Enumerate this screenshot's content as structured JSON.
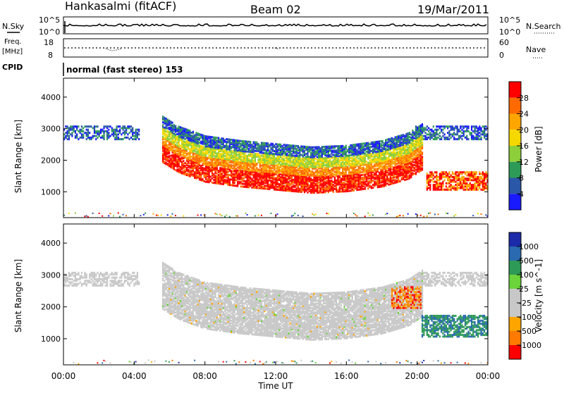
{
  "header": {
    "station": "Hankasalmi (fitACF)",
    "beam": "Beam 02",
    "date": "19/Mar/2011"
  },
  "top_panels": {
    "nsky_label": "N.Sky",
    "nsky_ticks": [
      "10^5",
      "10^0"
    ],
    "nsearch_label": "N.Search",
    "nsearch_ticks": [
      "10^5",
      "10^0"
    ],
    "freq_label_1": "Freq.",
    "freq_label_2": "[MHz]",
    "freq_ticks": [
      "18",
      "8"
    ],
    "nave_label": "Nave",
    "nave_ticks": [
      "60",
      "0"
    ],
    "cpid_label": "CPID",
    "cpid_text": "normal (fast stereo) 153"
  },
  "chart_data": [
    {
      "type": "heatmap",
      "name": "power",
      "ylabel": "Slant Range [km]",
      "yticks": [
        "4000",
        "3000",
        "2000",
        "1000"
      ],
      "xlabel": "Time UT",
      "xticks": [
        "00:00",
        "04:00",
        "08:00",
        "12:00",
        "16:00",
        "20:00",
        "00:00"
      ],
      "colorbar_label": "Power [dB]",
      "colorbar_ticks": [
        "28",
        "24",
        "20",
        "16",
        "12",
        "8",
        "4"
      ],
      "colorbar_colors": [
        "#ff0000",
        "#ff6a00",
        "#ffa500",
        "#f5d800",
        "#8ccf3a",
        "#2e9a57",
        "#2a57a8",
        "#1a1aff"
      ],
      "ylim": [
        180,
        4600
      ],
      "xlim_hours": [
        0,
        24
      ],
      "core_band": [
        [
          5.5,
          2150
        ],
        [
          6.5,
          1800
        ],
        [
          8,
          1500
        ],
        [
          10,
          1350
        ],
        [
          12,
          1250
        ],
        [
          14,
          1150
        ],
        [
          16,
          1200
        ],
        [
          18,
          1350
        ],
        [
          19.5,
          1600
        ],
        [
          20.3,
          1900
        ]
      ]
    },
    {
      "type": "heatmap",
      "name": "velocity",
      "ylabel": "Slant Range [km]",
      "yticks": [
        "4000",
        "3000",
        "2000",
        "1000"
      ],
      "xlabel": "Time UT",
      "xticks": [
        "00:00",
        "04:00",
        "08:00",
        "12:00",
        "16:00",
        "20:00",
        "00:00"
      ],
      "colorbar_label": "Velocity [m s^-1]",
      "colorbar_ticks": [
        "1000",
        "500",
        "100",
        "25",
        "-25",
        "-100",
        "-500",
        "-1000"
      ],
      "colorbar_colors": [
        "#1a2aa8",
        "#2a6ab0",
        "#2e9a57",
        "#6ad43a",
        "#c8c8c8",
        "#c8c8c8",
        "#ffa500",
        "#ff7a00",
        "#ff0000"
      ],
      "ylim": [
        180,
        4600
      ],
      "xlim_hours": [
        0,
        24
      ]
    }
  ]
}
